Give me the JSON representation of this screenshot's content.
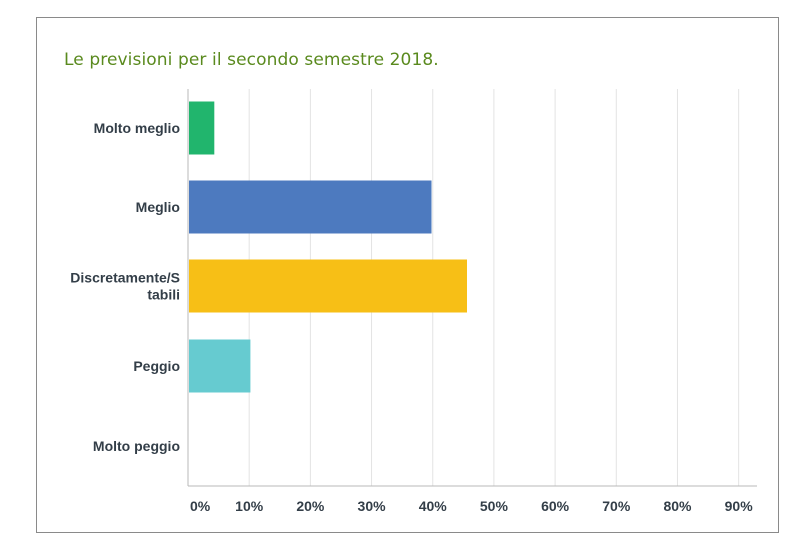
{
  "chart_data": {
    "type": "bar",
    "orientation": "horizontal",
    "title": "Le previsioni per il secondo semestre 2018.",
    "categories": [
      [
        "Molto meglio"
      ],
      [
        "Meglio"
      ],
      [
        "Discretamente/S",
        "tabili"
      ],
      [
        "Peggio"
      ],
      [
        "Molto peggio"
      ]
    ],
    "values": [
      4.3,
      39.8,
      45.6,
      10.2,
      0
    ],
    "colors": [
      "#21b56d",
      "#4d7abf",
      "#f7bf16",
      "#66cbd0",
      "#d0d0d0"
    ],
    "x_ticks": [
      "0%",
      "10%",
      "20%",
      "30%",
      "40%",
      "50%",
      "60%",
      "70%",
      "80%",
      "90%"
    ],
    "xlim": [
      0,
      93
    ],
    "grid": true,
    "unit": "%"
  }
}
